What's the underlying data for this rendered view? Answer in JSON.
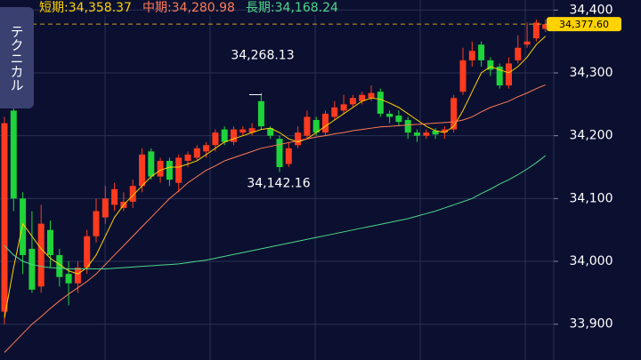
{
  "chart_data": {
    "type": "candlestick",
    "side_tab": "テクニカル",
    "up_color": "#ff3b1f",
    "down_color": "#1fd33a",
    "open": [
      33920,
      34240,
      34100,
      34020,
      33960,
      34050,
      34010,
      33980,
      33965,
      33990,
      34040,
      34070,
      34090,
      34085,
      34095,
      34120,
      34175,
      34135,
      34160,
      34125,
      34160,
      34165,
      34175,
      34185,
      34210,
      34190,
      34205,
      34205,
      34255,
      34212,
      34195,
      34155,
      34185,
      34200,
      34225,
      34205,
      34230,
      34240,
      34250,
      34255,
      34260,
      34270,
      34235,
      34232,
      34225,
      34205,
      34200,
      34208,
      34205,
      34210,
      34270,
      34320,
      34345,
      34320,
      34310,
      34280,
      34320,
      34345,
      34355,
      34370
    ],
    "high": [
      34230,
      34260,
      34110,
      34080,
      34090,
      34065,
      34020,
      34000,
      34000,
      34050,
      34100,
      34120,
      34125,
      34110,
      34130,
      34180,
      34180,
      34165,
      34165,
      34170,
      34175,
      34185,
      34190,
      34210,
      34215,
      34215,
      34215,
      34220,
      34268.13,
      34215,
      34200,
      34190,
      34215,
      34240,
      34230,
      34240,
      34255,
      34265,
      34265,
      34270,
      34280,
      34275,
      34240,
      34240,
      34230,
      34210,
      34210,
      34212,
      34215,
      34265,
      34340,
      34350,
      34350,
      34325,
      34315,
      34325,
      34360,
      34380,
      34385,
      34385
    ],
    "low": [
      33900,
      34080,
      33980,
      33950,
      33950,
      33990,
      33960,
      33930,
      33950,
      33980,
      34030,
      34060,
      34080,
      34080,
      34085,
      34110,
      34130,
      34125,
      34120,
      34110,
      34150,
      34160,
      34165,
      34175,
      34185,
      34185,
      34200,
      34200,
      34210,
      34195,
      34142.16,
      34150,
      34180,
      34195,
      34200,
      34200,
      34225,
      34235,
      34245,
      34250,
      34255,
      34230,
      34220,
      34215,
      34195,
      34190,
      34195,
      34195,
      34195,
      34205,
      34265,
      34310,
      34310,
      34295,
      34275,
      34275,
      34315,
      34340,
      34350,
      34365
    ],
    "close": [
      34220,
      34100,
      34010,
      33955,
      34060,
      34010,
      33975,
      33965,
      33990,
      34040,
      34080,
      34100,
      34115,
      34095,
      34120,
      34170,
      34135,
      34160,
      34130,
      34165,
      34170,
      34180,
      34185,
      34205,
      34190,
      34210,
      34210,
      34212,
      34215,
      34200,
      34150,
      34180,
      34205,
      34230,
      34205,
      34235,
      34245,
      34250,
      34260,
      34265,
      34268,
      34235,
      34230,
      34222,
      34205,
      34200,
      34205,
      34202,
      34210,
      34260,
      34320,
      34335,
      34320,
      34305,
      34280,
      34315,
      34340,
      34350,
      34380,
      34377.6
    ],
    "series": [
      {
        "name": "短期:34,358.37",
        "color": "#ffd200",
        "values": [
          33910,
          33990,
          34060,
          34040,
          34020,
          34005,
          33995,
          33985,
          33980,
          33990,
          34010,
          34040,
          34070,
          34090,
          34105,
          34120,
          34135,
          34145,
          34150,
          34150,
          34155,
          34160,
          34170,
          34180,
          34190,
          34195,
          34200,
          34205,
          34210,
          34212,
          34205,
          34195,
          34190,
          34195,
          34205,
          34215,
          34225,
          34235,
          34245,
          34255,
          34260,
          34258,
          34252,
          34245,
          34235,
          34225,
          34215,
          34208,
          34205,
          34215,
          34240,
          34270,
          34300,
          34310,
          34305,
          34300,
          34310,
          34325,
          34345,
          34358.37
        ]
      },
      {
        "name": "中期:34,280.98",
        "color": "#ff7a55",
        "values": [
          33855,
          33870,
          33885,
          33900,
          33912,
          33925,
          33937,
          33948,
          33958,
          33968,
          33980,
          33995,
          34010,
          34025,
          34040,
          34055,
          34070,
          34085,
          34100,
          34112,
          34125,
          34135,
          34145,
          34152,
          34160,
          34165,
          34170,
          34175,
          34180,
          34183,
          34186,
          34189,
          34192,
          34195,
          34198,
          34200,
          34203,
          34205,
          34208,
          34210,
          34212,
          34214,
          34215,
          34216,
          34217,
          34218,
          34219,
          34220,
          34221,
          34222,
          34225,
          34230,
          34238,
          34245,
          34250,
          34255,
          34262,
          34268,
          34275,
          34280.98
        ]
      },
      {
        "name": "長期:34,168.24",
        "color": "#4fd68a",
        "values": [
          34025,
          34010,
          34000,
          33995,
          33992,
          33990,
          33989,
          33988,
          33988,
          33988,
          33988,
          33988,
          33989,
          33990,
          33991,
          33992,
          33993,
          33994,
          33995,
          33996,
          33998,
          34000,
          34002,
          34005,
          34008,
          34011,
          34014,
          34017,
          34020,
          34023,
          34026,
          34029,
          34032,
          34035,
          34038,
          34041,
          34044,
          34047,
          34050,
          34053,
          34056,
          34059,
          34062,
          34065,
          34068,
          34072,
          34076,
          34080,
          34085,
          34090,
          34095,
          34100,
          34108,
          34115,
          34123,
          34130,
          34138,
          34147,
          34157,
          34168.24
        ]
      }
    ],
    "high_label": {
      "value": 34268.13,
      "label": "34,268.13"
    },
    "low_label": {
      "value": 34142.16,
      "label": "34,142.16"
    },
    "last_price": {
      "value": 34377.6,
      "label": "34,377.60"
    },
    "ylim": [
      33843,
      34416
    ],
    "yticks": [
      {
        "value": 33900,
        "label": "33,900"
      },
      {
        "value": 34000,
        "label": "34,000"
      },
      {
        "value": 34100,
        "label": "34,100"
      },
      {
        "value": 34200,
        "label": "34,200"
      },
      {
        "value": 34300,
        "label": "34,300"
      },
      {
        "value": 34400,
        "label": "34,400"
      }
    ],
    "grid": true
  }
}
